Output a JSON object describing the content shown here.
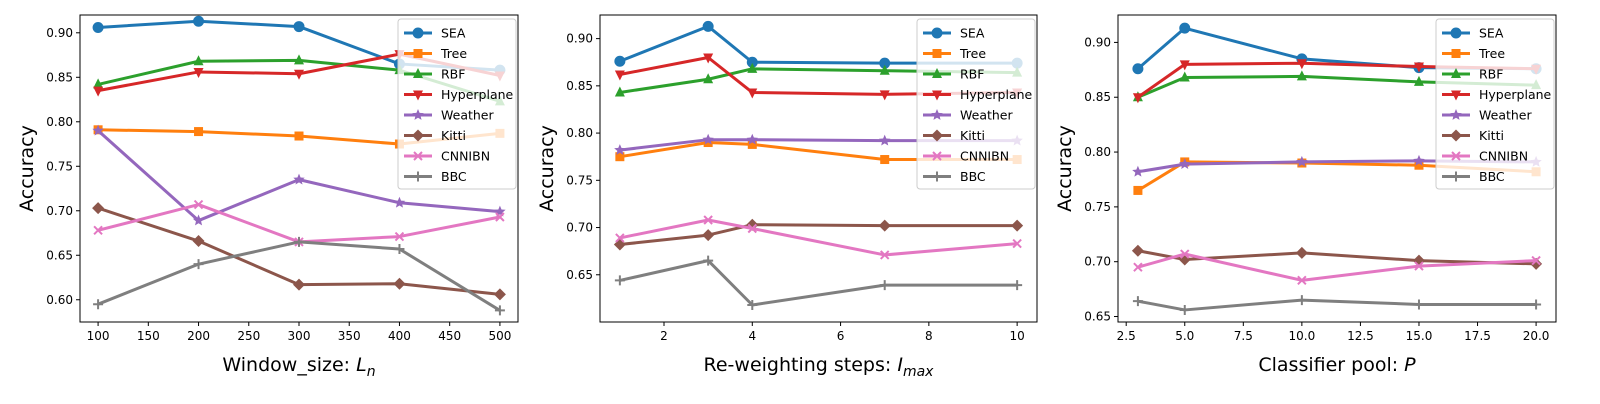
{
  "chart_data": [
    {
      "type": "line",
      "xlabel": "Window_size:",
      "xlabel_symbol": "L",
      "xlabel_sub": "n",
      "ylabel": "Accuracy",
      "x": [
        100,
        200,
        300,
        400,
        500
      ],
      "xlim": [
        82,
        518
      ],
      "ylim": [
        0.575,
        0.92
      ],
      "xticks": [
        "100",
        "150",
        "200",
        "250",
        "300",
        "350",
        "400",
        "450",
        "500"
      ],
      "xtick_values": [
        100,
        150,
        200,
        250,
        300,
        350,
        400,
        450,
        500
      ],
      "yticks": [
        "0.60",
        "0.65",
        "0.70",
        "0.75",
        "0.80",
        "0.85",
        "0.90"
      ],
      "ytick_values": [
        0.6,
        0.65,
        0.7,
        0.75,
        0.8,
        0.85,
        0.9
      ],
      "legend_position": "top-right",
      "series": [
        {
          "name": "SEA",
          "values": [
            0.906,
            0.913,
            0.907,
            0.865,
            0.858
          ]
        },
        {
          "name": "Tree",
          "values": [
            0.791,
            0.789,
            0.784,
            0.775,
            0.787
          ]
        },
        {
          "name": "RBF",
          "values": [
            0.842,
            0.868,
            0.869,
            0.858,
            0.823
          ]
        },
        {
          "name": "Hyperplane",
          "values": [
            0.835,
            0.856,
            0.854,
            0.876,
            0.852
          ]
        },
        {
          "name": "Weather",
          "values": [
            0.79,
            0.689,
            0.735,
            0.709,
            0.699
          ]
        },
        {
          "name": "Kitti",
          "values": [
            0.703,
            0.666,
            0.617,
            0.618,
            0.606
          ]
        },
        {
          "name": "CNNIBN",
          "values": [
            0.678,
            0.707,
            0.665,
            0.671,
            0.693
          ]
        },
        {
          "name": "BBC",
          "values": [
            0.595,
            0.64,
            0.665,
            0.657,
            0.588
          ]
        }
      ]
    },
    {
      "type": "line",
      "xlabel": "Re-weighting steps:",
      "xlabel_symbol": "I",
      "xlabel_sub": "max",
      "ylabel": "Accuracy",
      "x": [
        1,
        3,
        4,
        7,
        10
      ],
      "xlim": [
        0.55,
        10.45
      ],
      "ylim": [
        0.6,
        0.925
      ],
      "xticks": [
        "2",
        "4",
        "6",
        "8",
        "10"
      ],
      "xtick_values": [
        2,
        4,
        6,
        8,
        10
      ],
      "yticks": [
        "0.65",
        "0.70",
        "0.75",
        "0.80",
        "0.85",
        "0.90"
      ],
      "ytick_values": [
        0.65,
        0.7,
        0.75,
        0.8,
        0.85,
        0.9
      ],
      "legend_position": "top-right",
      "series": [
        {
          "name": "SEA",
          "values": [
            0.876,
            0.913,
            0.875,
            0.874,
            0.874
          ]
        },
        {
          "name": "Tree",
          "values": [
            0.775,
            0.79,
            0.788,
            0.772,
            0.772
          ]
        },
        {
          "name": "RBF",
          "values": [
            0.843,
            0.857,
            0.868,
            0.866,
            0.864
          ]
        },
        {
          "name": "Hyperplane",
          "values": [
            0.862,
            0.88,
            0.843,
            0.841,
            0.843
          ]
        },
        {
          "name": "Weather",
          "values": [
            0.782,
            0.793,
            0.793,
            0.792,
            0.792
          ]
        },
        {
          "name": "Kitti",
          "values": [
            0.682,
            0.692,
            0.703,
            0.702,
            0.702
          ]
        },
        {
          "name": "CNNIBN",
          "values": [
            0.689,
            0.708,
            0.699,
            0.671,
            0.683
          ]
        },
        {
          "name": "BBC",
          "values": [
            0.644,
            0.665,
            0.618,
            0.639,
            0.639
          ]
        }
      ]
    },
    {
      "type": "line",
      "xlabel": "Classifier pool:",
      "xlabel_symbol": "P",
      "xlabel_sub": "",
      "ylabel": "Accuracy",
      "x": [
        3,
        5,
        10,
        15,
        20
      ],
      "xlim": [
        2.15,
        20.85
      ],
      "ylim": [
        0.645,
        0.925
      ],
      "xticks": [
        "2.5",
        "5.0",
        "7.5",
        "10.0",
        "12.5",
        "15.0",
        "17.5",
        "20.0"
      ],
      "xtick_values": [
        2.5,
        5.0,
        7.5,
        10.0,
        12.5,
        15.0,
        17.5,
        20.0
      ],
      "yticks": [
        "0.65",
        "0.70",
        "0.75",
        "0.80",
        "0.85",
        "0.90"
      ],
      "ytick_values": [
        0.65,
        0.7,
        0.75,
        0.8,
        0.85,
        0.9
      ],
      "legend_position": "top-right",
      "series": [
        {
          "name": "SEA",
          "values": [
            0.876,
            0.913,
            0.885,
            0.877,
            0.876
          ]
        },
        {
          "name": "Tree",
          "values": [
            0.765,
            0.791,
            0.79,
            0.788,
            0.782
          ]
        },
        {
          "name": "RBF",
          "values": [
            0.85,
            0.868,
            0.869,
            0.864,
            0.861
          ]
        },
        {
          "name": "Hyperplane",
          "values": [
            0.85,
            0.88,
            0.881,
            0.878,
            0.876
          ]
        },
        {
          "name": "Weather",
          "values": [
            0.782,
            0.789,
            0.791,
            0.792,
            0.791
          ]
        },
        {
          "name": "Kitti",
          "values": [
            0.71,
            0.702,
            0.708,
            0.701,
            0.698
          ]
        },
        {
          "name": "CNNIBN",
          "values": [
            0.695,
            0.707,
            0.683,
            0.696,
            0.701
          ]
        },
        {
          "name": "BBC",
          "values": [
            0.664,
            0.656,
            0.665,
            0.661,
            0.661
          ]
        }
      ]
    }
  ],
  "series_style": [
    {
      "name": "SEA",
      "color": "#1f77b4",
      "marker": "circle"
    },
    {
      "name": "Tree",
      "color": "#ff7f0e",
      "marker": "square"
    },
    {
      "name": "RBF",
      "color": "#2ca02c",
      "marker": "triangle-up"
    },
    {
      "name": "Hyperplane",
      "color": "#d62728",
      "marker": "triangle-down"
    },
    {
      "name": "Weather",
      "color": "#9467bd",
      "marker": "star"
    },
    {
      "name": "Kitti",
      "color": "#8c564b",
      "marker": "diamond"
    },
    {
      "name": "CNNIBN",
      "color": "#e377c2",
      "marker": "x"
    },
    {
      "name": "BBC",
      "color": "#7f7f7f",
      "marker": "plus"
    }
  ]
}
